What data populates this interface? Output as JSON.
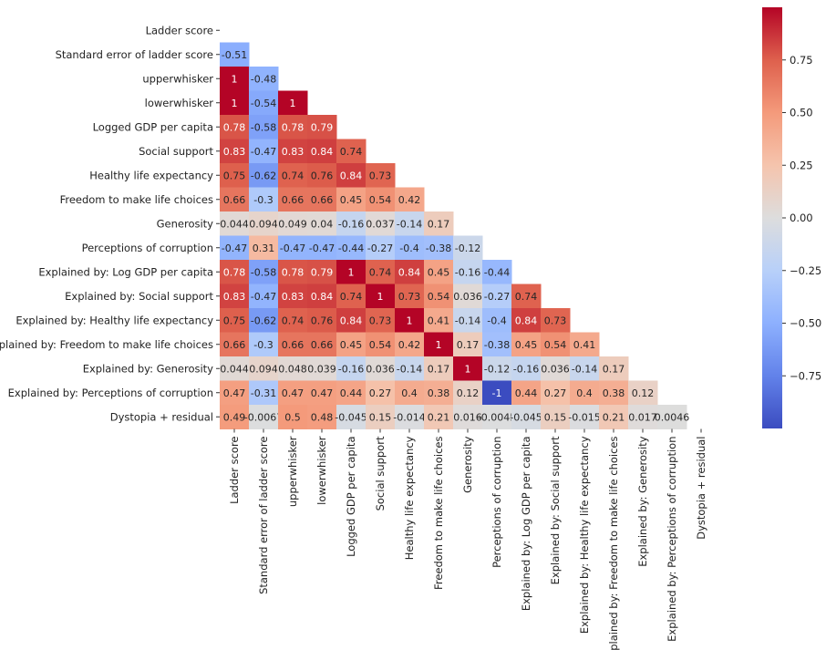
{
  "chart_data": {
    "type": "heatmap",
    "title": "",
    "labels": [
      "Ladder score",
      "Standard error of ladder score",
      "upperwhisker",
      "lowerwhisker",
      "Logged GDP per capita",
      "Social support",
      "Healthy life expectancy",
      "Freedom to make life choices",
      "Generosity",
      "Perceptions of corruption",
      "Explained by: Log GDP per capita",
      "Explained by: Social support",
      "Explained by: Healthy life expectancy",
      "Explained by: Freedom to make life choices",
      "Explained by: Generosity",
      "Explained by: Perceptions of corruption",
      "Dystopia + residual"
    ],
    "mask": "upper triangle incl. diagonal",
    "values": [
      [],
      [
        -0.51
      ],
      [
        1,
        -0.48
      ],
      [
        1,
        -0.54,
        1
      ],
      [
        0.78,
        -0.58,
        0.78,
        0.79
      ],
      [
        0.83,
        -0.47,
        0.83,
        0.84,
        0.74
      ],
      [
        0.75,
        -0.62,
        0.74,
        0.76,
        0.84,
        0.73
      ],
      [
        0.66,
        -0.3,
        0.66,
        0.66,
        0.45,
        0.54,
        0.42
      ],
      [
        0.044,
        0.094,
        0.049,
        0.04,
        -0.16,
        0.037,
        -0.14,
        0.17
      ],
      [
        -0.47,
        0.31,
        -0.47,
        -0.47,
        -0.44,
        -0.27,
        -0.4,
        -0.38,
        -0.12
      ],
      [
        0.78,
        -0.58,
        0.78,
        0.79,
        1,
        0.74,
        0.84,
        0.45,
        -0.16,
        -0.44
      ],
      [
        0.83,
        -0.47,
        0.83,
        0.84,
        0.74,
        1,
        0.73,
        0.54,
        0.036,
        -0.27,
        0.74
      ],
      [
        0.75,
        -0.62,
        0.74,
        0.76,
        0.84,
        0.73,
        1,
        0.41,
        -0.14,
        -0.4,
        0.84,
        0.73
      ],
      [
        0.66,
        -0.3,
        0.66,
        0.66,
        0.45,
        0.54,
        0.42,
        1,
        0.17,
        -0.38,
        0.45,
        0.54,
        0.41
      ],
      [
        0.044,
        0.094,
        0.048,
        0.039,
        -0.16,
        0.036,
        -0.14,
        0.17,
        1,
        -0.12,
        -0.16,
        0.036,
        -0.14,
        0.17
      ],
      [
        0.47,
        -0.31,
        0.47,
        0.47,
        0.44,
        0.27,
        0.4,
        0.38,
        0.12,
        -1,
        0.44,
        0.27,
        0.4,
        0.38,
        0.12
      ],
      [
        0.49,
        -0.0067,
        0.5,
        0.48,
        -0.045,
        0.15,
        -0.014,
        0.21,
        0.016,
        -0.0045,
        -0.045,
        0.15,
        -0.015,
        0.21,
        0.017,
        0.0046
      ]
    ],
    "colormap": "coolwarm",
    "vrange": [
      -1,
      1
    ],
    "colorbar_ticks": [
      "0.75",
      "0.50",
      "0.25",
      "0.00",
      "−0.25",
      "−0.50",
      "−0.75"
    ],
    "colorbar_tick_values": [
      0.75,
      0.5,
      0.25,
      0,
      -0.25,
      -0.5,
      -0.75
    ]
  }
}
